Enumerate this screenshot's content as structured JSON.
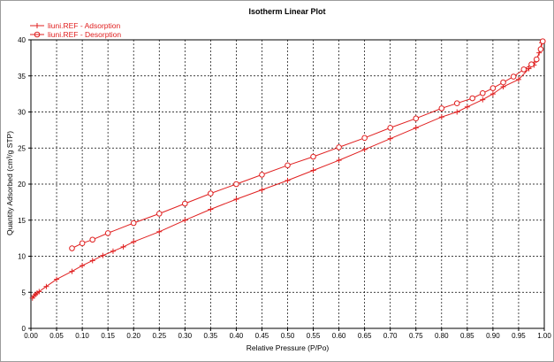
{
  "chart_data": {
    "type": "line",
    "title": "Isotherm Linear Plot",
    "xlabel": "Relative Pressure (P/Po)",
    "ylabel": "Quantity Adsorbed (cm³/g STP)",
    "xlim": [
      0.0,
      1.0
    ],
    "ylim": [
      0,
      40
    ],
    "xticks": [
      "0.00",
      "0.05",
      "0.10",
      "0.15",
      "0.20",
      "0.25",
      "0.30",
      "0.35",
      "0.40",
      "0.45",
      "0.50",
      "0.55",
      "0.60",
      "0.65",
      "0.70",
      "0.75",
      "0.80",
      "0.85",
      "0.90",
      "0.95",
      "1.00"
    ],
    "yticks": [
      "0",
      "5",
      "10",
      "15",
      "20",
      "25",
      "30",
      "35",
      "40"
    ],
    "grid": true,
    "legend_position": "top-left",
    "colors": {
      "series": "#e02020",
      "axis": "#000000",
      "grid": "#000000",
      "frame": "#9c9c9c"
    },
    "series": [
      {
        "name": "liuni.REF - Adsorption",
        "marker": "plus",
        "x": [
          0.003,
          0.006,
          0.009,
          0.012,
          0.016,
          0.03,
          0.05,
          0.08,
          0.1,
          0.12,
          0.14,
          0.16,
          0.18,
          0.2,
          0.25,
          0.3,
          0.35,
          0.4,
          0.45,
          0.5,
          0.55,
          0.6,
          0.65,
          0.7,
          0.75,
          0.8,
          0.83,
          0.85,
          0.88,
          0.9,
          0.92,
          0.95,
          0.97,
          0.98,
          0.985,
          0.99,
          0.995
        ],
        "y": [
          4.2,
          4.5,
          4.7,
          4.9,
          5.1,
          5.8,
          6.8,
          7.9,
          8.7,
          9.4,
          10.1,
          10.7,
          11.3,
          12.0,
          13.4,
          15.0,
          16.5,
          17.9,
          19.2,
          20.5,
          21.9,
          23.3,
          24.8,
          26.3,
          27.8,
          29.3,
          30.0,
          30.7,
          31.7,
          32.5,
          33.5,
          34.5,
          36.0,
          36.5,
          37.2,
          38.2,
          39.6
        ]
      },
      {
        "name": "liuni.REF - Desorption",
        "marker": "circle",
        "x": [
          0.08,
          0.1,
          0.12,
          0.15,
          0.2,
          0.25,
          0.3,
          0.35,
          0.4,
          0.45,
          0.5,
          0.55,
          0.6,
          0.65,
          0.7,
          0.75,
          0.8,
          0.83,
          0.86,
          0.88,
          0.9,
          0.92,
          0.94,
          0.96,
          0.975,
          0.985,
          0.993,
          0.997
        ],
        "y": [
          11.1,
          11.8,
          12.3,
          13.2,
          14.6,
          15.9,
          17.3,
          18.7,
          20.0,
          21.3,
          22.6,
          23.8,
          25.1,
          26.4,
          27.8,
          29.1,
          30.5,
          31.2,
          31.9,
          32.6,
          33.3,
          34.1,
          34.9,
          35.9,
          36.6,
          37.3,
          38.7,
          39.8
        ]
      }
    ]
  }
}
